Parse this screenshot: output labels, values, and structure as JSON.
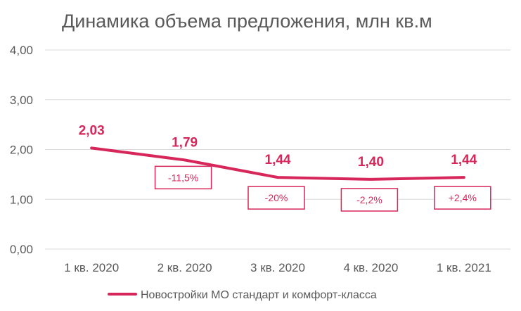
{
  "chart_data": {
    "type": "line",
    "title": "Динамика объема предложения, млн кв.м",
    "categories": [
      "1 кв. 2020",
      "2 кв. 2020",
      "3 кв. 2020",
      "4 кв. 2020",
      "1 кв. 2021"
    ],
    "series": [
      {
        "name": "Новостройки МО стандарт и комфорт-класса",
        "values": [
          2.03,
          1.79,
          1.44,
          1.4,
          1.44
        ],
        "labels": [
          "2,03",
          "1,79",
          "1,44",
          "1,40",
          "1,44"
        ],
        "color": "#d7265a"
      }
    ],
    "change_annotations": [
      {
        "category": "2 кв. 2020",
        "text": "-11,5%"
      },
      {
        "category": "3 кв. 2020",
        "text": "-20%"
      },
      {
        "category": "4 кв. 2020",
        "text": "-2,2%"
      },
      {
        "category": "1 кв. 2021",
        "text": "+2,4%"
      }
    ],
    "yticks": [
      "0,00",
      "1,00",
      "2,00",
      "3,00",
      "4,00"
    ],
    "ylim": [
      0,
      4
    ],
    "grid": true,
    "legend": "bottom",
    "gridline_color": "#d9d9d9"
  }
}
